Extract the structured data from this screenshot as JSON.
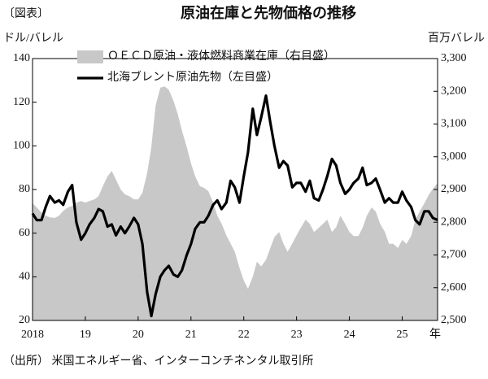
{
  "chart_data": {
    "type": "line",
    "tag": "〔図表〕",
    "title": "原油在庫と先物価格の推移",
    "y_label": "ドル/バレル",
    "y2_label": "百万バレル",
    "x_unit": "年",
    "source": "（出所） 米国エネルギー省、インターコンチネンタル取引所",
    "x": [
      2018,
      2018.08,
      2018.17,
      2018.25,
      2018.33,
      2018.42,
      2018.5,
      2018.58,
      2018.67,
      2018.75,
      2018.83,
      2018.92,
      2019,
      2019.08,
      2019.17,
      2019.25,
      2019.33,
      2019.42,
      2019.5,
      2019.58,
      2019.67,
      2019.75,
      2019.83,
      2019.92,
      2020,
      2020.08,
      2020.17,
      2020.25,
      2020.33,
      2020.42,
      2020.5,
      2020.58,
      2020.67,
      2020.75,
      2020.83,
      2020.92,
      2021,
      2021.08,
      2021.17,
      2021.25,
      2021.33,
      2021.42,
      2021.5,
      2021.58,
      2021.67,
      2021.75,
      2021.83,
      2021.92,
      2022,
      2022.08,
      2022.17,
      2022.25,
      2022.33,
      2022.42,
      2022.5,
      2022.58,
      2022.67,
      2022.75,
      2022.83,
      2022.92,
      2023,
      2023.08,
      2023.17,
      2023.25,
      2023.33,
      2023.42,
      2023.5,
      2023.58,
      2023.67,
      2023.75,
      2023.83,
      2023.92,
      2024,
      2024.08,
      2024.17,
      2024.25,
      2024.33,
      2024.42,
      2024.5,
      2024.58,
      2024.67,
      2024.75,
      2024.83,
      2024.92,
      2025,
      2025.08,
      2025.17,
      2025.25,
      2025.33,
      2025.42,
      2025.5,
      2025.58,
      2025.67
    ],
    "series": [
      {
        "name": "ＯＥＣＤ原油・液体燃料商業在庫（右目盛）",
        "color": "#c8c8c8",
        "mark": "area",
        "axis": "y2",
        "values": [
          2858,
          2845,
          2830,
          2820,
          2815,
          2813,
          2820,
          2835,
          2845,
          2850,
          2860,
          2865,
          2860,
          2865,
          2870,
          2880,
          2910,
          2940,
          2957,
          2930,
          2900,
          2885,
          2880,
          2870,
          2870,
          2890,
          2950,
          3030,
          3156,
          3211,
          3215,
          3205,
          3170,
          3130,
          3080,
          3030,
          2980,
          2940,
          2910,
          2905,
          2895,
          2860,
          2820,
          2796,
          2760,
          2735,
          2710,
          2660,
          2622,
          2597,
          2634,
          2680,
          2665,
          2685,
          2720,
          2755,
          2770,
          2735,
          2710,
          2735,
          2760,
          2783,
          2808,
          2795,
          2770,
          2783,
          2795,
          2808,
          2770,
          2785,
          2820,
          2795,
          2770,
          2758,
          2758,
          2783,
          2820,
          2845,
          2833,
          2796,
          2771,
          2734,
          2734,
          2721,
          2746,
          2734,
          2758,
          2808,
          2833,
          2858,
          2883,
          2902,
          2920
        ]
      },
      {
        "name": "北海ブレント原油先物（左目盛）",
        "color": "#000000",
        "mark": "line",
        "values": [
          69,
          66,
          66,
          72,
          77,
          74,
          75,
          73,
          79,
          82,
          65,
          57,
          60,
          64,
          67,
          71,
          70,
          63,
          64,
          59,
          63,
          60,
          63,
          67,
          64,
          55,
          33,
          22,
          32,
          40,
          43,
          45,
          41,
          40,
          43,
          50,
          55,
          62,
          65,
          65,
          68,
          73,
          75,
          71,
          74,
          84,
          81,
          74,
          86,
          97,
          117,
          105,
          113,
          123,
          111,
          100,
          90,
          93,
          91,
          81,
          83,
          83,
          79,
          84,
          76,
          75,
          80,
          86,
          94,
          91,
          83,
          78,
          80,
          83,
          85,
          90,
          82,
          83,
          85,
          80,
          74,
          76,
          74,
          74,
          79,
          75,
          72,
          66,
          64,
          70,
          70,
          67,
          66
        ]
      }
    ],
    "xlim": [
      2018,
      2025.67
    ],
    "xticks": [
      2018,
      {
        "value": 2019,
        "label": "19"
      },
      {
        "value": 2020,
        "label": "20"
      },
      {
        "value": 2021,
        "label": "21"
      },
      {
        "value": 2022,
        "label": "22"
      },
      {
        "value": 2023,
        "label": "23"
      },
      {
        "value": 2024,
        "label": "24"
      },
      {
        "value": 2025,
        "label": "25"
      }
    ],
    "ylim": [
      20,
      140
    ],
    "yticks": [
      20,
      40,
      60,
      80,
      100,
      120,
      140
    ],
    "y2lim": [
      2500,
      3300
    ],
    "y2ticks": [
      {
        "value": 2500,
        "label": "2,500"
      },
      {
        "value": 2600,
        "label": "2,600"
      },
      {
        "value": 2700,
        "label": "2,700"
      },
      {
        "value": 2800,
        "label": "2,800"
      },
      {
        "value": 2900,
        "label": "2,900"
      },
      {
        "value": 3000,
        "label": "3,000"
      },
      {
        "value": 3100,
        "label": "3,100"
      },
      {
        "value": 3200,
        "label": "3,200"
      },
      {
        "value": 3300,
        "label": "3,300"
      }
    ]
  }
}
